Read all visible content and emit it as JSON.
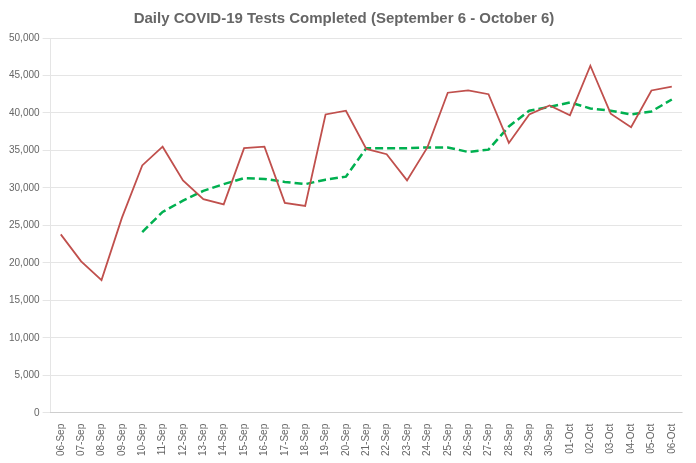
{
  "chart_data": {
    "type": "line",
    "title": "Daily COVID-19 Tests Completed (September 6 - October 6)",
    "categories": [
      "06-Sep",
      "07-Sep",
      "08-Sep",
      "09-Sep",
      "10-Sep",
      "11-Sep",
      "12-Sep",
      "13-Sep",
      "14-Sep",
      "15-Sep",
      "16-Sep",
      "17-Sep",
      "18-Sep",
      "19-Sep",
      "20-Sep",
      "21-Sep",
      "22-Sep",
      "23-Sep",
      "24-Sep",
      "25-Sep",
      "26-Sep",
      "27-Sep",
      "28-Sep",
      "29-Sep",
      "30-Sep",
      "01-Oct",
      "02-Oct",
      "03-Oct",
      "04-Oct",
      "05-Oct",
      "06-Oct"
    ],
    "series": [
      {
        "color": "#C0504D",
        "line_style": "solid",
        "values": [
          23800,
          20200,
          17700,
          26000,
          33000,
          35500,
          31000,
          28500,
          27800,
          35300,
          35500,
          28000,
          27600,
          39800,
          40300,
          35200,
          34500,
          31000,
          35400,
          42700,
          43000,
          42500,
          36000,
          39800,
          41000,
          39700,
          46300,
          39900,
          38100,
          43000,
          43500
        ]
      },
      {
        "color": "#00B050",
        "line_style": "dashed",
        "values": [
          null,
          null,
          null,
          null,
          24100,
          26800,
          28300,
          29600,
          30500,
          31300,
          31200,
          30800,
          30500,
          31100,
          31500,
          35300,
          35300,
          35300,
          35400,
          35400,
          34800,
          35100,
          38200,
          40300,
          40800,
          41400,
          40600,
          40300,
          39800,
          40200,
          41800
        ]
      }
    ],
    "ylim": [
      0,
      50000
    ],
    "yticks": [
      0,
      {
        "value": 5000,
        "label": "5,000"
      },
      {
        "value": 10000,
        "label": "10,000"
      },
      {
        "value": 15000,
        "label": "15,000"
      },
      {
        "value": 20000,
        "label": "20,000"
      },
      {
        "value": 25000,
        "label": "25,000"
      },
      {
        "value": 30000,
        "label": "30,000"
      },
      {
        "value": 35000,
        "label": "35,000"
      },
      {
        "value": 40000,
        "label": "40,000"
      },
      {
        "value": 45000,
        "label": "45,000"
      },
      {
        "value": 50000,
        "label": "50,000"
      }
    ],
    "grid": "y"
  }
}
